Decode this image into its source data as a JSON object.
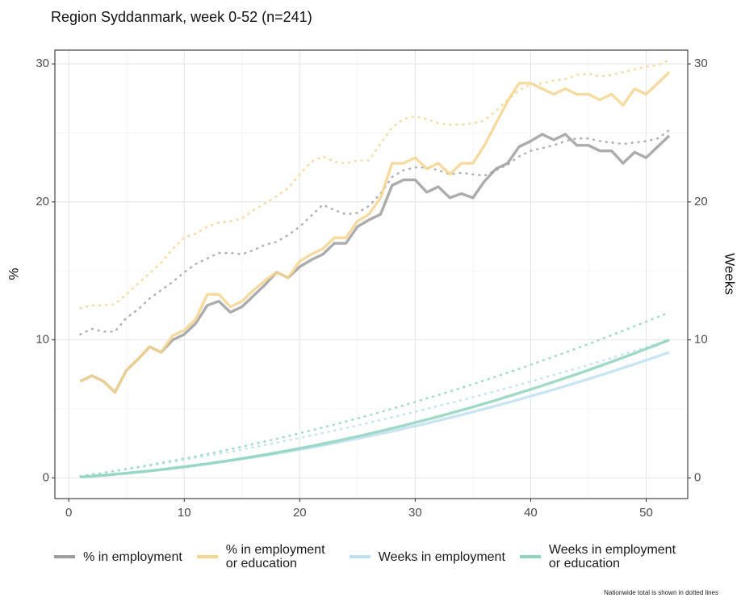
{
  "chart_data": {
    "type": "line",
    "title": "Region Syddanmark, week 0-52 (n=241)",
    "ylabel": "%",
    "y2label": "Weeks",
    "note": "Nationwide total is shown in dotted lines",
    "x": [
      1,
      2,
      3,
      4,
      5,
      6,
      7,
      8,
      9,
      10,
      11,
      12,
      13,
      14,
      15,
      16,
      17,
      18,
      19,
      20,
      21,
      22,
      23,
      24,
      25,
      26,
      27,
      28,
      29,
      30,
      31,
      32,
      33,
      34,
      35,
      36,
      37,
      38,
      39,
      40,
      41,
      42,
      43,
      44,
      45,
      46,
      47,
      48,
      49,
      50,
      51,
      52
    ],
    "xlim": [
      -1.2,
      53.6
    ],
    "xticks": [
      0,
      10,
      20,
      30,
      40,
      50
    ],
    "ylim": [
      -1.5,
      31
    ],
    "yticks": [
      0,
      10,
      20,
      30
    ],
    "y2lim": [
      -1.5,
      31
    ],
    "y2ticks": [
      0,
      10,
      20,
      30
    ],
    "grid": true,
    "series": [
      {
        "name": "% in employment",
        "color": "#9e9e9e",
        "values": [
          7.0,
          7.4,
          7.0,
          6.2,
          7.8,
          8.6,
          9.5,
          9.1,
          10.0,
          10.4,
          11.2,
          12.5,
          12.8,
          12.0,
          12.4,
          13.2,
          14.0,
          14.9,
          14.5,
          15.3,
          15.8,
          16.2,
          17.0,
          17.0,
          18.2,
          18.7,
          19.1,
          21.2,
          21.6,
          21.6,
          20.7,
          21.1,
          20.3,
          20.6,
          20.3,
          21.5,
          22.4,
          22.8,
          24.0,
          24.4,
          24.9,
          24.5,
          24.9,
          24.1,
          24.1,
          23.7,
          23.7,
          22.8,
          23.6,
          23.2,
          24.0,
          24.8
        ]
      },
      {
        "name": "% in employment or education",
        "color": "#f3d58f",
        "values": [
          7.0,
          7.4,
          7.0,
          6.2,
          7.8,
          8.6,
          9.5,
          9.1,
          10.3,
          10.7,
          11.5,
          13.3,
          13.3,
          12.4,
          12.8,
          13.6,
          14.3,
          14.9,
          14.5,
          15.7,
          16.2,
          16.6,
          17.4,
          17.4,
          18.6,
          19.1,
          20.3,
          22.8,
          22.8,
          23.2,
          22.4,
          22.8,
          22.0,
          22.8,
          22.8,
          24.1,
          25.7,
          27.3,
          28.6,
          28.6,
          28.2,
          27.8,
          28.2,
          27.8,
          27.8,
          27.4,
          27.8,
          27.0,
          28.2,
          27.8,
          28.6,
          29.4
        ]
      },
      {
        "name": "Weeks in employment",
        "color": "#bfe0f1",
        "axis": "y2",
        "values": [
          0.06,
          0.12,
          0.19,
          0.27,
          0.34,
          0.43,
          0.51,
          0.6,
          0.7,
          0.8,
          0.91,
          1.01,
          1.13,
          1.25,
          1.37,
          1.5,
          1.63,
          1.77,
          1.91,
          2.05,
          2.2,
          2.36,
          2.52,
          2.68,
          2.85,
          3.02,
          3.2,
          3.38,
          3.57,
          3.76,
          3.95,
          4.15,
          4.36,
          4.57,
          4.78,
          5.0,
          5.22,
          5.45,
          5.68,
          5.92,
          6.16,
          6.4,
          6.65,
          6.91,
          7.16,
          7.43,
          7.69,
          7.97,
          8.24,
          8.53,
          8.81,
          9.1
        ]
      },
      {
        "name": "Weeks in employment or education",
        "color": "#8fd3bd",
        "axis": "y2",
        "values": [
          0.06,
          0.12,
          0.18,
          0.26,
          0.33,
          0.42,
          0.5,
          0.6,
          0.7,
          0.8,
          0.91,
          1.02,
          1.15,
          1.27,
          1.4,
          1.54,
          1.68,
          1.83,
          1.98,
          2.14,
          2.3,
          2.47,
          2.64,
          2.82,
          3.0,
          3.19,
          3.39,
          3.59,
          3.79,
          4.01,
          4.22,
          4.44,
          4.67,
          4.9,
          5.14,
          5.38,
          5.63,
          5.89,
          6.15,
          6.41,
          6.68,
          6.96,
          7.24,
          7.52,
          7.81,
          8.11,
          8.41,
          8.72,
          9.03,
          9.35,
          9.67,
          10.0
        ]
      },
      {
        "color": "#b5b5b5",
        "dotted": true,
        "values": [
          10.4,
          10.8,
          10.6,
          10.6,
          11.6,
          12.2,
          13.0,
          13.6,
          14.2,
          14.9,
          15.5,
          15.9,
          16.3,
          16.3,
          16.2,
          16.5,
          16.9,
          17.1,
          17.6,
          18.2,
          19.0,
          19.8,
          19.4,
          19.1,
          19.2,
          19.7,
          20.6,
          21.8,
          22.3,
          22.5,
          22.5,
          22.3,
          22.0,
          22.1,
          22.0,
          21.9,
          22.3,
          22.7,
          23.3,
          23.7,
          23.9,
          24.1,
          24.4,
          24.6,
          24.6,
          24.4,
          24.3,
          24.2,
          24.3,
          24.4,
          24.6,
          25.2
        ]
      },
      {
        "color": "#f6dca6",
        "dotted": true,
        "values": [
          12.3,
          12.5,
          12.5,
          12.6,
          13.3,
          14.1,
          14.8,
          15.6,
          16.6,
          17.4,
          17.7,
          18.2,
          18.5,
          18.6,
          18.8,
          19.4,
          19.9,
          20.4,
          21.0,
          22.0,
          22.9,
          23.3,
          22.9,
          22.8,
          23.0,
          23.0,
          24.2,
          25.4,
          26.0,
          26.2,
          26.0,
          25.7,
          25.6,
          25.6,
          25.7,
          25.9,
          26.6,
          27.4,
          28.1,
          28.5,
          28.6,
          28.8,
          28.9,
          29.2,
          29.3,
          29.1,
          29.2,
          29.4,
          29.6,
          29.8,
          29.9,
          30.3
        ]
      },
      {
        "color": "#c6e4f3",
        "dotted": true,
        "axis": "y2",
        "values": [
          0.12,
          0.24,
          0.36,
          0.48,
          0.61,
          0.74,
          0.88,
          1.02,
          1.16,
          1.3,
          1.45,
          1.6,
          1.75,
          1.9,
          2.06,
          2.22,
          2.39,
          2.55,
          2.72,
          2.9,
          3.07,
          3.25,
          3.43,
          3.62,
          3.81,
          4.0,
          4.19,
          4.39,
          4.59,
          4.79,
          5.0,
          5.21,
          5.42,
          5.63,
          5.85,
          6.07,
          6.29,
          6.52,
          6.75,
          6.98,
          7.22,
          7.46,
          7.7,
          7.94,
          8.19,
          8.44,
          8.69,
          8.95,
          9.21,
          9.47,
          9.74,
          10.0
        ]
      },
      {
        "color": "#a4dccb",
        "dotted": true,
        "axis": "y2",
        "values": [
          0.12,
          0.25,
          0.37,
          0.51,
          0.65,
          0.79,
          0.93,
          1.09,
          1.24,
          1.4,
          1.56,
          1.73,
          1.9,
          2.08,
          2.26,
          2.45,
          2.64,
          2.83,
          3.03,
          3.23,
          3.44,
          3.65,
          3.87,
          4.09,
          4.31,
          4.54,
          4.77,
          5.01,
          5.25,
          5.5,
          5.75,
          6.0,
          6.26,
          6.52,
          6.79,
          7.06,
          7.34,
          7.62,
          7.9,
          8.19,
          8.49,
          8.78,
          9.09,
          9.39,
          9.7,
          10.02,
          10.34,
          10.66,
          10.99,
          11.32,
          11.66,
          12.0
        ]
      }
    ]
  }
}
